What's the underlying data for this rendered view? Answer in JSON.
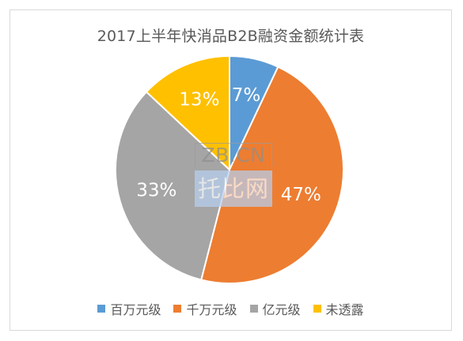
{
  "chart_data": {
    "type": "pie",
    "title": "2017上半年快消品B2B融资金额统计表",
    "categories": [
      "百万元级",
      "千万元级",
      "亿元级",
      "未透露"
    ],
    "values": [
      7,
      47,
      33,
      13
    ],
    "labels": [
      "7%",
      "47%",
      "33%",
      "13%"
    ],
    "colors": [
      "#5b9bd5",
      "#ed7d31",
      "#a5a5a5",
      "#ffc000"
    ],
    "legend_position": "bottom"
  },
  "watermark": {
    "top_text": "ZB.CN",
    "bottom_text": "托比网"
  }
}
